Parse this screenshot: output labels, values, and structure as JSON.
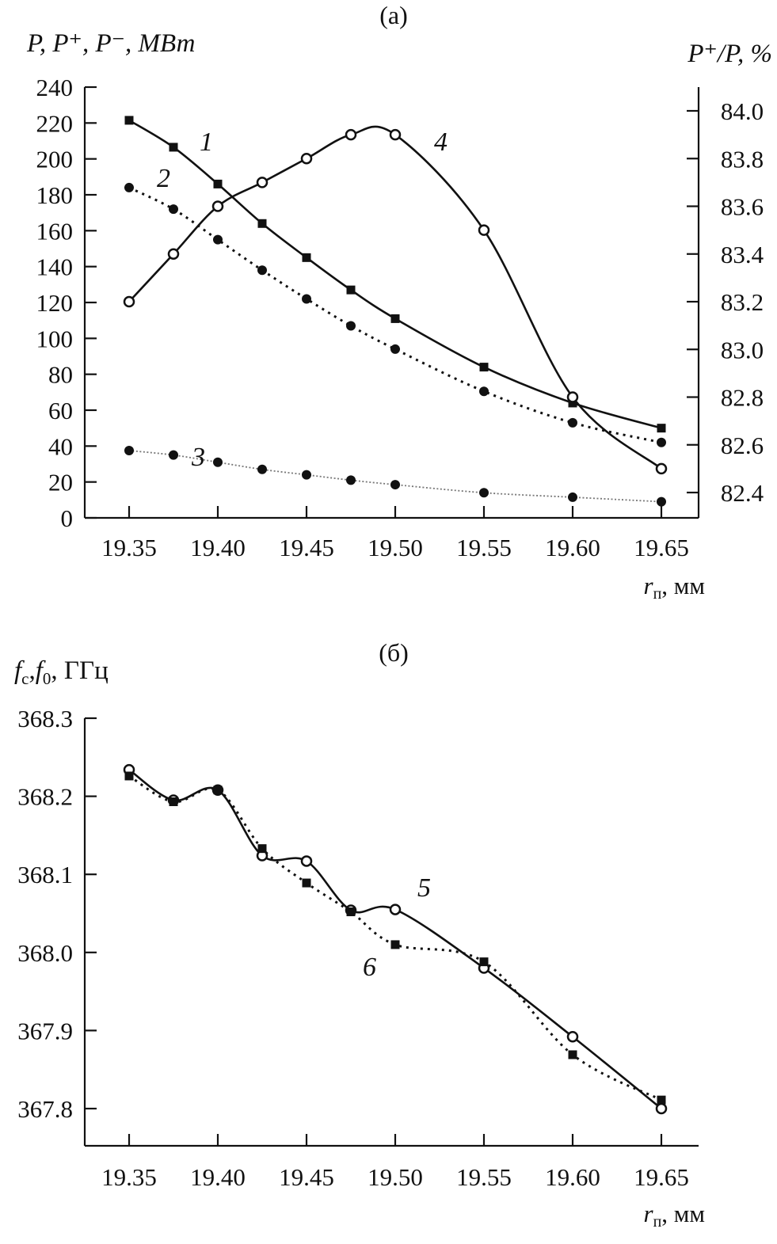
{
  "chart_data": [
    {
      "type": "line",
      "panel_label": "(a)",
      "ylabel": "P, P⁺, P⁻, МВт",
      "y2label": "P⁺/P, %",
      "xlabel": "r",
      "xlabel_sub": "п",
      "xlabel_unit": ", мм",
      "xlim": [
        19.35,
        19.65
      ],
      "ylim": [
        0,
        240
      ],
      "y2lim": [
        82.4,
        84.0
      ],
      "xticks": [
        "19.35",
        "19.40",
        "19.45",
        "19.50",
        "19.55",
        "19.60",
        "19.65"
      ],
      "yticks": [
        "0",
        "20",
        "40",
        "60",
        "80",
        "100",
        "120",
        "140",
        "160",
        "180",
        "200",
        "220",
        "240"
      ],
      "y2ticks": [
        "82.4",
        "82.6",
        "82.8",
        "83.0",
        "83.2",
        "83.4",
        "83.6",
        "83.8",
        "84.0"
      ],
      "x": [
        19.35,
        19.375,
        19.4,
        19.425,
        19.45,
        19.475,
        19.5,
        19.55,
        19.6,
        19.65
      ],
      "series": [
        {
          "name": "1",
          "marker": "square",
          "line": "solid",
          "axis": "left",
          "values": [
            221.5,
            206.5,
            186,
            164,
            145,
            127,
            111,
            84,
            64,
            50
          ]
        },
        {
          "name": "2",
          "marker": "dot",
          "line": "dotted",
          "axis": "left",
          "values": [
            184,
            172,
            155,
            138,
            122,
            107,
            94,
            70.5,
            53,
            42
          ]
        },
        {
          "name": "3",
          "marker": "dot",
          "line": "finedot",
          "axis": "left",
          "values": [
            37.5,
            35,
            31,
            27,
            24,
            21,
            18.5,
            14,
            11.5,
            9
          ]
        },
        {
          "name": "4",
          "marker": "circle",
          "line": "solid",
          "axis": "right",
          "values": [
            83.2,
            83.4,
            83.6,
            83.7,
            83.8,
            83.9,
            83.9,
            83.5,
            82.8,
            82.5
          ]
        }
      ]
    },
    {
      "type": "line",
      "panel_label": "(б)",
      "ylabel": "f",
      "ylabel_parts": [
        "f",
        "c",
        ",",
        "f",
        "0",
        ", ГГц"
      ],
      "xlabel": "r",
      "xlabel_sub": "п",
      "xlabel_unit": ", мм",
      "xlim": [
        19.35,
        19.65
      ],
      "ylim": [
        367.8,
        368.3
      ],
      "xticks": [
        "19.35",
        "19.40",
        "19.45",
        "19.50",
        "19.55",
        "19.60",
        "19.65"
      ],
      "yticks": [
        "367.8",
        "367.9",
        "368.0",
        "368.1",
        "368.2",
        "368.3"
      ],
      "x": [
        19.35,
        19.375,
        19.4,
        19.425,
        19.45,
        19.475,
        19.5,
        19.55,
        19.6,
        19.65
      ],
      "series": [
        {
          "name": "5",
          "marker": "circle",
          "line": "solid",
          "values": [
            368.234,
            368.195,
            368.208,
            368.124,
            368.117,
            368.054,
            368.055,
            367.98,
            367.892,
            367.8
          ]
        },
        {
          "name": "6",
          "marker": "square",
          "line": "dotted",
          "values": [
            368.226,
            368.193,
            368.208,
            368.133,
            368.089,
            368.052,
            368.01,
            367.988,
            367.869,
            367.811
          ]
        }
      ]
    }
  ]
}
